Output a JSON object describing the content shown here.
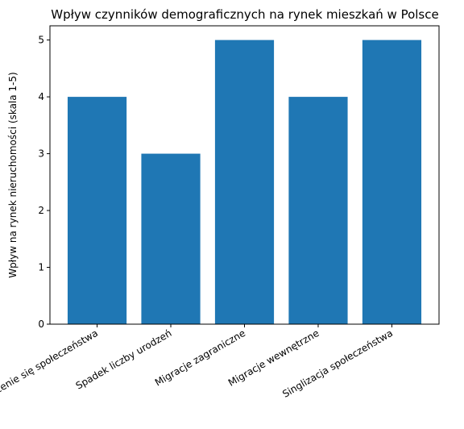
{
  "chart_data": {
    "type": "bar",
    "title": "Wpływ czynników demograficznych na rynek mieszkań w Polsce",
    "y_label": "Wpływ na rynek nieruchomości (skala 1-5)",
    "categories": [
      "Starzenie się społeczeństwa",
      "Spadek liczby urodzeń",
      "Migracje zagraniczne",
      "Migracje wewnętrzne",
      "Singlizacja społeczeństwa"
    ],
    "values": [
      4,
      3,
      5,
      4,
      5
    ],
    "color": "#1f77b4",
    "ylim": [
      0,
      5.25
    ],
    "yticks": [
      0,
      1,
      2,
      3,
      4,
      5
    ],
    "grid": false
  }
}
